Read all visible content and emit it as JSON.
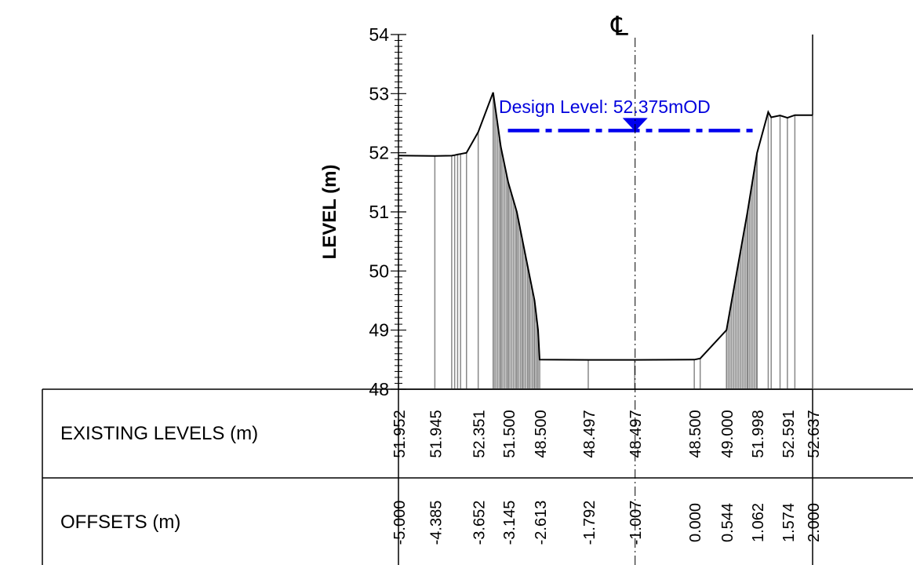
{
  "labels": {
    "y_axis": "LEVEL (m)",
    "centerline": "℄",
    "design_level": "Design Level: 52.375mOD",
    "row_existing": "EXISTING LEVELS (m)",
    "row_offsets": "OFFSETS (m)"
  },
  "chart_data": {
    "type": "line",
    "title": "",
    "xlabel": "",
    "ylabel": "LEVEL (m)",
    "xlim": [
      -5.0,
      2.0
    ],
    "ylim": [
      48,
      54
    ],
    "y_ticks": [
      48,
      49,
      50,
      51,
      52,
      53,
      54
    ],
    "centerline_offset": -1.0,
    "design_level": 52.375,
    "design_level_extent": [
      -3.15,
      1.0
    ],
    "profile": {
      "x": [
        -5.0,
        -4.385,
        -4.1,
        -4.05,
        -4.0,
        -3.95,
        -3.85,
        -3.652,
        -3.4,
        -3.27,
        -3.145,
        -3.0,
        -2.9,
        -2.8,
        -2.7,
        -2.64,
        -2.613,
        -1.792,
        -1.007,
        0.0,
        0.1,
        0.544,
        0.9,
        1.062,
        1.25,
        1.3,
        1.45,
        1.574,
        1.7,
        2.0
      ],
      "y": [
        51.952,
        51.945,
        51.95,
        51.96,
        51.97,
        51.98,
        52.0,
        52.351,
        53.02,
        52.1,
        51.5,
        51.0,
        50.5,
        50.0,
        49.5,
        49.0,
        48.5,
        48.497,
        48.497,
        48.5,
        48.52,
        49.0,
        51.0,
        51.998,
        52.69,
        52.6,
        52.63,
        52.591,
        52.637,
        52.637
      ]
    },
    "table": {
      "existing_levels": [
        "51.952",
        "51.945",
        "52.351",
        "51.500",
        "48.500",
        "48.497",
        "48.497",
        "48.500",
        "49.000",
        "51.998",
        "52.591",
        "52.637"
      ],
      "offsets": [
        "-5.000",
        "-4.385",
        "-3.652",
        "-3.145",
        "-2.613",
        "-1.792",
        "-1.007",
        "0.000",
        "0.544",
        "1.062",
        "1.574",
        "2.000"
      ]
    }
  }
}
